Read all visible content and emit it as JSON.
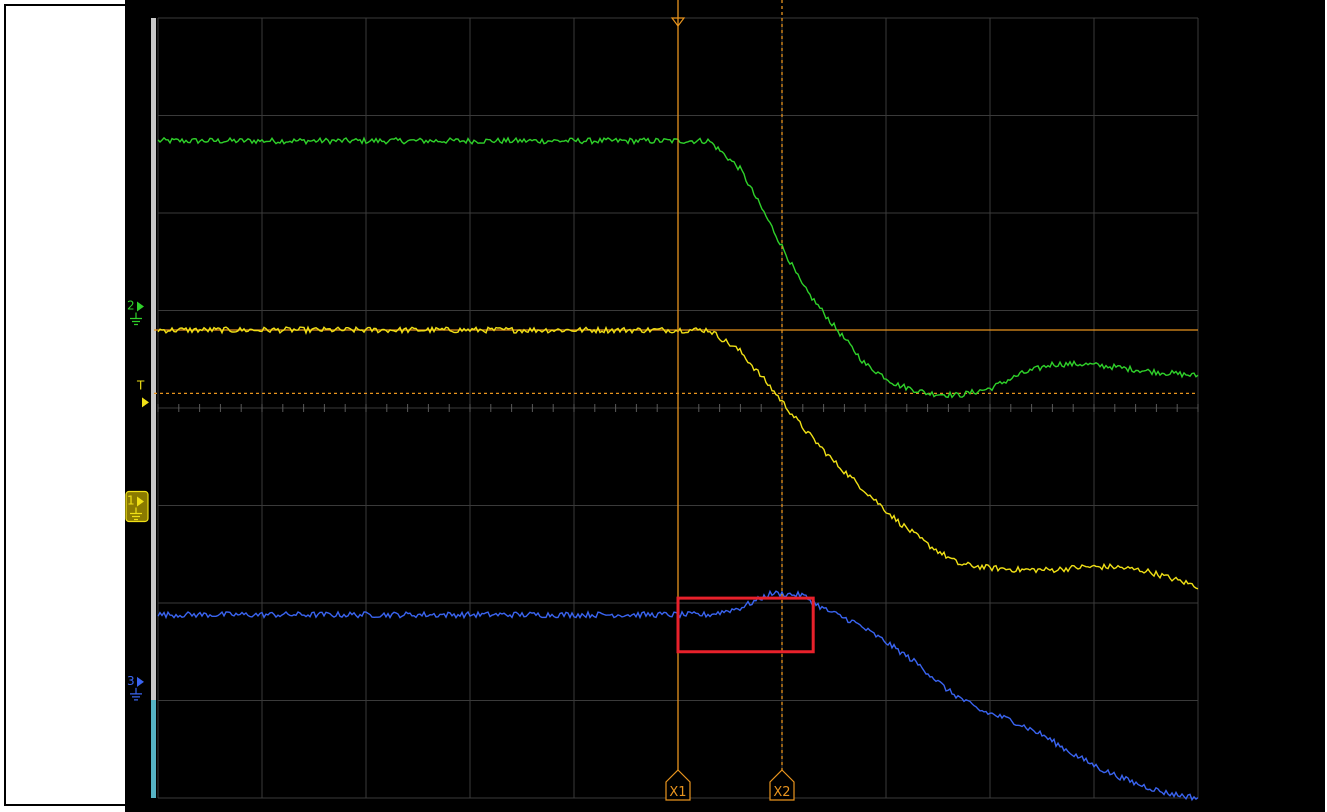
{
  "colors": {
    "background": "#000000",
    "grid": "#3a3a3a",
    "channel1": "#f0e016",
    "channel2": "#2fd12a",
    "channel3": "#3a64f0",
    "cursor": "#e8941e",
    "highlight": "#e8212b"
  },
  "markers": {
    "ch1": "1",
    "ch2": "2",
    "ch3": "3",
    "trigger": "T",
    "cursor_x1": "X1",
    "cursor_x2": "X2"
  },
  "chart_data": {
    "type": "line",
    "title": "",
    "xlabel": "",
    "ylabel": "",
    "grid": true,
    "divisions": {
      "x": 10,
      "y": 8
    },
    "xlim": [
      0,
      10
    ],
    "ylim": [
      -4,
      4
    ],
    "series": [
      {
        "id": "ch2",
        "color": "#2fd12a",
        "x": [
          0,
          5.0,
          5.3,
          5.6,
          5.9,
          6.2,
          6.5,
          6.8,
          7.1,
          7.4,
          7.7,
          8.0,
          8.3,
          8.6,
          8.9,
          9.2,
          9.5,
          10.0
        ],
        "y": [
          2.74,
          2.74,
          2.74,
          2.45,
          1.86,
          1.25,
          0.84,
          0.45,
          0.24,
          0.15,
          0.13,
          0.2,
          0.35,
          0.45,
          0.45,
          0.42,
          0.38,
          0.33
        ]
      },
      {
        "id": "ch1",
        "color": "#f0e016",
        "x": [
          0,
          5.0,
          5.3,
          5.6,
          5.9,
          6.2,
          6.5,
          6.8,
          7.1,
          7.4,
          7.7,
          8.0,
          8.3,
          8.6,
          8.9,
          9.2,
          9.5,
          10.0
        ],
        "y": [
          0.8,
          0.8,
          0.8,
          0.58,
          0.2,
          -0.2,
          -0.55,
          -0.85,
          -1.15,
          -1.4,
          -1.6,
          -1.64,
          -1.66,
          -1.66,
          -1.63,
          -1.63,
          -1.67,
          -1.83
        ]
      },
      {
        "id": "ch3",
        "color": "#3a64f0",
        "x": [
          0,
          5.0,
          5.3,
          5.6,
          5.9,
          6.2,
          6.4,
          6.7,
          7.0,
          7.3,
          7.6,
          7.9,
          8.2,
          8.5,
          8.8,
          9.1,
          9.4,
          9.7,
          10.0
        ],
        "y": [
          -2.12,
          -2.12,
          -2.12,
          -2.05,
          -1.9,
          -1.92,
          -2.06,
          -2.2,
          -2.4,
          -2.62,
          -2.9,
          -3.1,
          -3.2,
          -3.35,
          -3.55,
          -3.72,
          -3.85,
          -3.95,
          -4.0
        ]
      }
    ],
    "cursors": [
      {
        "label": "X1",
        "x": 5.0,
        "style": "solid"
      },
      {
        "label": "X2",
        "x": 6.0,
        "style": "dotted"
      }
    ],
    "reference_levels": [
      {
        "y": 0.8,
        "style": "solid",
        "color": "#e8941e"
      },
      {
        "y": 0.15,
        "style": "dotted",
        "color": "#e8941e",
        "label": "T"
      }
    ],
    "channel_ground_levels": [
      {
        "channel": "2",
        "y": 1.0,
        "color": "#2fd12a"
      },
      {
        "channel": "1",
        "y": -1.0,
        "color": "#f0e016"
      },
      {
        "channel": "3",
        "y": -2.85,
        "color": "#3a64f0"
      }
    ],
    "highlight_region": {
      "x": [
        5.0,
        6.3
      ],
      "y": [
        -2.5,
        -1.95
      ],
      "color": "#e8212b"
    }
  }
}
